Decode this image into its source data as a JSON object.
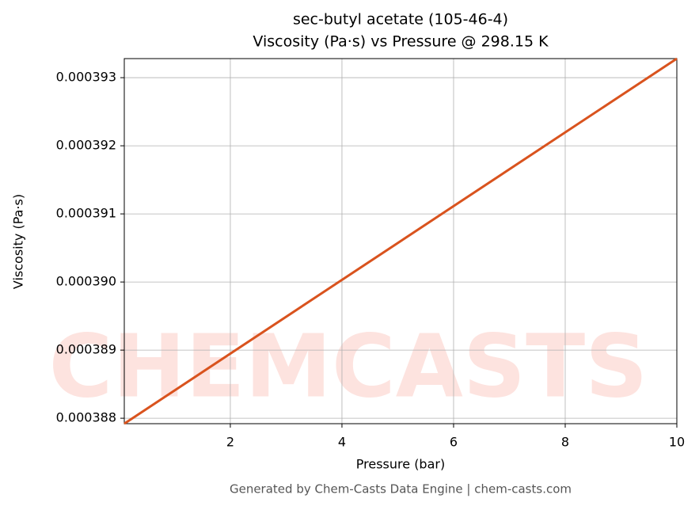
{
  "chart_data": {
    "type": "line",
    "title": "sec-butyl acetate (105-46-4)",
    "subtitle": "Viscosity (Pa·s) vs Pressure @ 298.15 K",
    "x_label": "Pressure (bar)",
    "y_label": "Viscosity (Pa·s)",
    "footer": "Generated by Chem-Casts Data Engine | chem-casts.com",
    "watermark": "CHEMCASTS",
    "x": [
      0.1,
      10
    ],
    "series": [
      {
        "name": "Viscosity",
        "color": "#d9531e",
        "values": [
          0.00038792,
          0.00039328
        ]
      }
    ],
    "xlim": [
      0.1,
      10
    ],
    "xticks": [
      2,
      4,
      6,
      8,
      10
    ],
    "ylim": [
      0.00038792,
      0.00039328
    ],
    "yticks": [
      0.000388,
      0.000389,
      {
        "value": 0.00039,
        "label": "0.000390"
      },
      0.000391,
      0.000392,
      0.000393
    ],
    "grid": true
  }
}
